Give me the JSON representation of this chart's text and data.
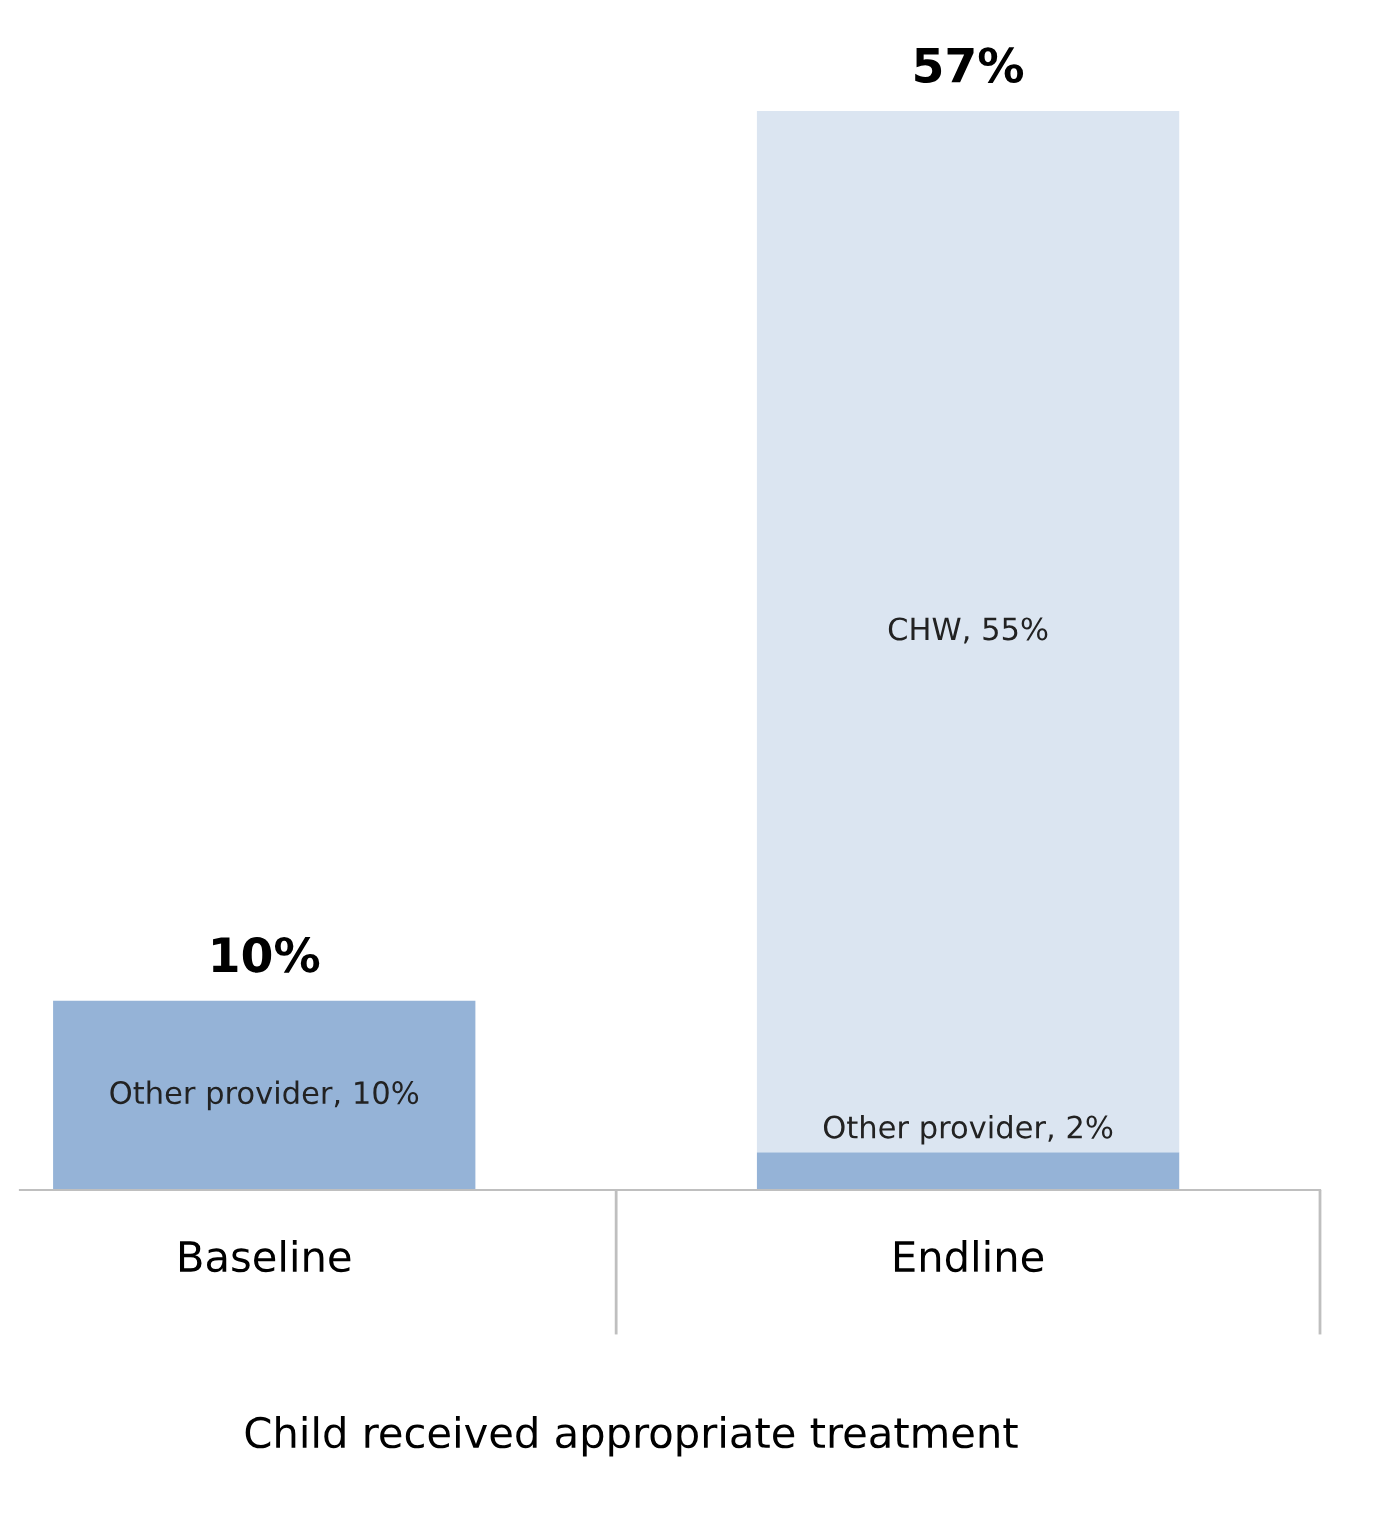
{
  "chart_data": {
    "type": "bar",
    "stacked": true,
    "xlabel": "Child received appropriate treatment",
    "categories": [
      "Baseline",
      "Endline"
    ],
    "series": [
      {
        "color": "#95b3d7",
        "values": [
          10,
          2
        ],
        "value_labels": [
          "Other provider, 10%",
          "Other provider, 2%"
        ]
      },
      {
        "color": "#dbe5f1",
        "values": [
          null,
          55
        ],
        "value_labels": [
          null,
          "CHW, 55%"
        ]
      }
    ],
    "totals": [
      "10%",
      "57%"
    ],
    "tick_labels": "x",
    "grid": false,
    "legend": false
  }
}
